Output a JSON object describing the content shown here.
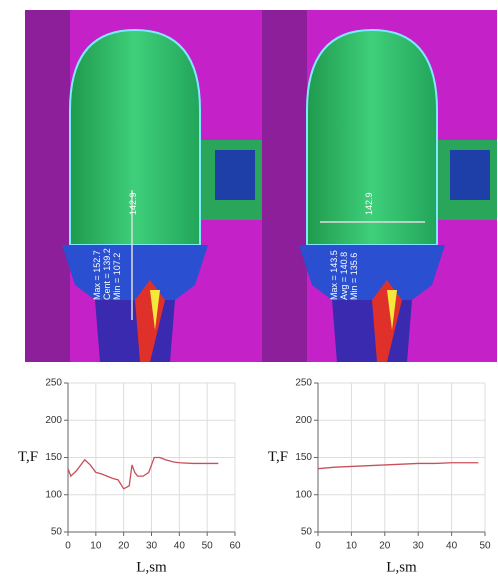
{
  "chart_data": [
    {
      "type": "line",
      "ylabel": "T,F",
      "xlabel": "L,sm",
      "series": [
        {
          "color": "#c8505a",
          "x": [
            0,
            1,
            3,
            6,
            8,
            10,
            12,
            14,
            16,
            18,
            20,
            21,
            22,
            23,
            24,
            25,
            27,
            29,
            31,
            33,
            35,
            38,
            40,
            45,
            50,
            54
          ],
          "values": [
            135,
            125,
            132,
            147,
            140,
            130,
            128,
            125,
            122,
            120,
            108,
            110,
            112,
            140,
            130,
            125,
            125,
            130,
            150,
            150,
            147,
            144,
            143,
            142,
            142,
            142
          ]
        }
      ],
      "xlim": [
        0,
        60
      ],
      "xticks": [
        0,
        10,
        20,
        30,
        40,
        50,
        60
      ],
      "ylim": [
        50,
        250
      ],
      "yticks": [
        50,
        100,
        150,
        200,
        250
      ],
      "grid": true
    },
    {
      "type": "line",
      "ylabel": "T,F",
      "xlabel": "L,sm",
      "series": [
        {
          "color": "#c8505a",
          "x": [
            0,
            5,
            10,
            15,
            20,
            25,
            30,
            35,
            40,
            48
          ],
          "values": [
            135,
            137,
            138,
            139,
            140,
            141,
            142,
            142,
            143,
            143
          ]
        }
      ],
      "xlim": [
        0,
        50
      ],
      "xticks": [
        0,
        10,
        20,
        30,
        40,
        50
      ],
      "ylim": [
        50,
        250
      ],
      "yticks": [
        50,
        100,
        150,
        200,
        250
      ],
      "grid": true
    }
  ],
  "thermal_images": [
    {
      "labels": [
        "Max = 152.7",
        "Cent = 139.2",
        "Min = 107.2"
      ],
      "line_value": "142.9"
    },
    {
      "labels": [
        "Max = 143.5",
        "Avg = 140.8",
        "Min = 135.6"
      ],
      "line_value": "142.9"
    }
  ]
}
